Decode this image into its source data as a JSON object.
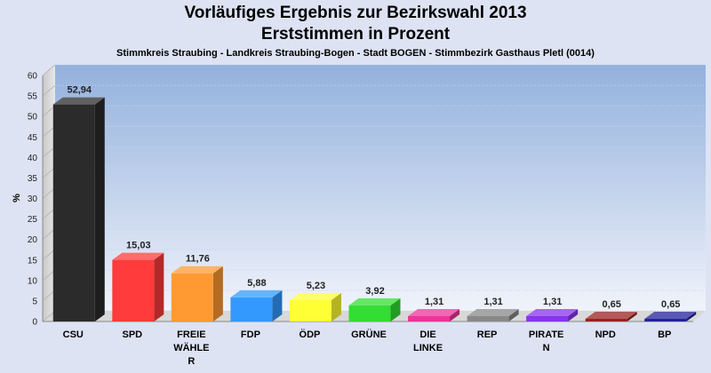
{
  "header": {
    "title_line1": "Vorläufiges Ergebnis zur Bezirkswahl 2013",
    "title_line2": "Erststimmen in Prozent",
    "subtitle": "Stimmkreis Straubing - Landkreis Straubing-Bogen - Stadt BOGEN - Stimmbezirk Gasthaus Pletl (0014)"
  },
  "chart_data": {
    "type": "bar",
    "title": "Vorläufiges Ergebnis zur Bezirkswahl 2013",
    "subtitle": "Erststimmen in Prozent",
    "xlabel": "",
    "ylabel": "%",
    "ylim": [
      0,
      60
    ],
    "yticks": [
      0,
      5,
      10,
      15,
      20,
      25,
      30,
      35,
      40,
      45,
      50,
      55,
      60
    ],
    "grid": true,
    "categories": [
      "CSU",
      "SPD",
      "FREIE WÄHLER",
      "FDP",
      "ÖDP",
      "GRÜNE",
      "DIE LINKE",
      "REP",
      "PIRATEN",
      "NPD",
      "BP"
    ],
    "category_lines": [
      [
        "CSU"
      ],
      [
        "SPD"
      ],
      [
        "FREIE",
        "WÄHLE",
        "R"
      ],
      [
        "FDP"
      ],
      [
        "ÖDP"
      ],
      [
        "GRÜNE"
      ],
      [
        "DIE",
        "LINKE"
      ],
      [
        "REP"
      ],
      [
        "PIRATE",
        "N"
      ],
      [
        "NPD"
      ],
      [
        "BP"
      ]
    ],
    "values": [
      52.94,
      15.03,
      11.76,
      5.88,
      5.23,
      3.92,
      1.31,
      1.31,
      1.31,
      0.65,
      0.65
    ],
    "value_labels": [
      "52,94",
      "15,03",
      "11,76",
      "5,88",
      "5,23",
      "3,92",
      "1,31",
      "1,31",
      "1,31",
      "0,65",
      "0,65"
    ],
    "colors": [
      "#2b2b2b",
      "#ff3b3b",
      "#ff9a33",
      "#3399ff",
      "#ffff33",
      "#33dd33",
      "#ee3399",
      "#888888",
      "#8833ee",
      "#992222",
      "#222299"
    ]
  }
}
